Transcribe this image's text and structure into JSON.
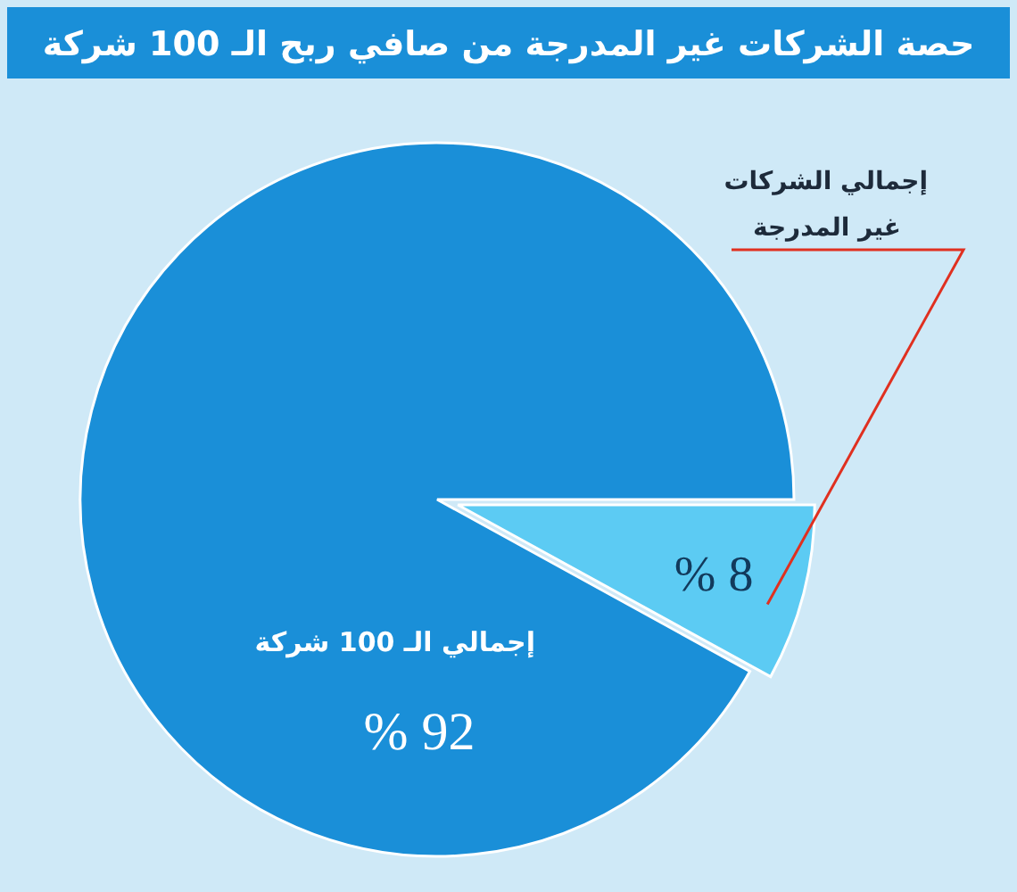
{
  "chart_data": {
    "type": "pie",
    "title": "حصة الشركات غير المدرجة من صافي ربح الـ 100 شركة",
    "categories": [
      "إجمالي الـ 100 شركة",
      "إجمالي الشركات غير المدرجة"
    ],
    "values": [
      92,
      8
    ],
    "colors": [
      "#1a8fd8",
      "#5ccbf3"
    ],
    "value_labels": [
      "92 %",
      "8 %"
    ]
  }
}
